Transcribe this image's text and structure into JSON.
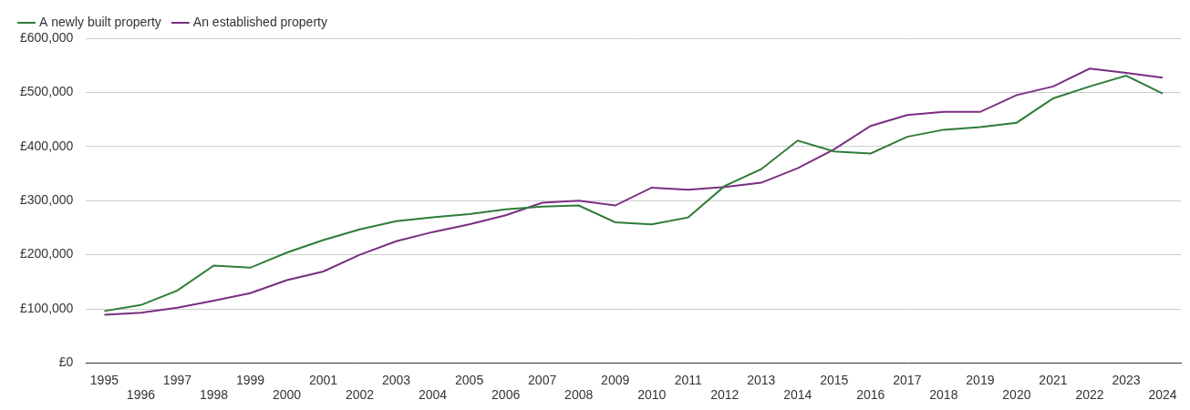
{
  "chart_data": {
    "type": "line",
    "categories": [
      "1995",
      "1996",
      "1997",
      "1998",
      "1999",
      "2000",
      "2001",
      "2002",
      "2003",
      "2004",
      "2005",
      "2006",
      "2007",
      "2008",
      "2009",
      "2010",
      "2011",
      "2012",
      "2013",
      "2014",
      "2015",
      "2016",
      "2017",
      "2018",
      "2019",
      "2020",
      "2021",
      "2022",
      "2023",
      "2024"
    ],
    "series": [
      {
        "name": "A newly built property",
        "color": "#2e7d3a",
        "values": [
          96000,
          107000,
          134000,
          180000,
          176000,
          204000,
          227000,
          247000,
          262000,
          269000,
          275000,
          284000,
          289000,
          291000,
          260000,
          256000,
          269000,
          327000,
          358000,
          411000,
          391000,
          387000,
          418000,
          431000,
          436000,
          444000,
          489000,
          511000,
          531000,
          498000
        ]
      },
      {
        "name": "An established property",
        "color": "#7a2e82",
        "values": [
          89000,
          93000,
          102000,
          115000,
          129000,
          153000,
          169000,
          200000,
          225000,
          242000,
          256000,
          273000,
          296000,
          300000,
          291000,
          324000,
          320000,
          325000,
          333000,
          360000,
          395000,
          438000,
          458000,
          464000,
          464000,
          495000,
          511000,
          544000,
          536000,
          527000
        ]
      }
    ],
    "ylim": [
      0,
      600000
    ],
    "yticks": [
      {
        "value": 0,
        "label": "£0"
      },
      {
        "value": 100000,
        "label": "£100,000"
      },
      {
        "value": 200000,
        "label": "£200,000"
      },
      {
        "value": 300000,
        "label": "£300,000"
      },
      {
        "value": 400000,
        "label": "£400,000"
      },
      {
        "value": 500000,
        "label": "£500,000"
      },
      {
        "value": 600000,
        "label": "£600,000"
      }
    ],
    "grid": true,
    "legend": "top-left"
  }
}
